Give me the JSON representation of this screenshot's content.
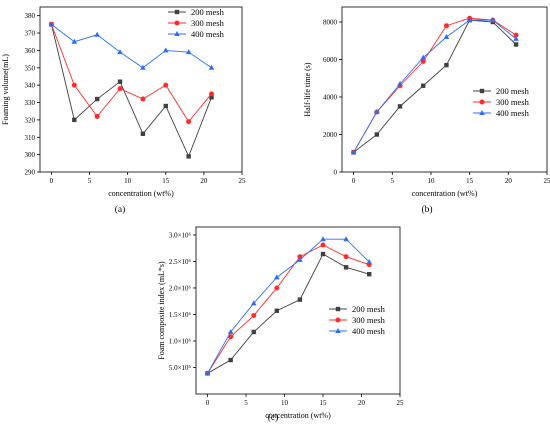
{
  "series_styles": [
    {
      "name": "200 mesh",
      "color": "#404040",
      "marker": "square"
    },
    {
      "name": "300 mesh",
      "color": "#ff2a2a",
      "marker": "circle"
    },
    {
      "name": "400 mesh",
      "color": "#2e6ff2",
      "marker": "triangle"
    }
  ],
  "chart_data": [
    {
      "panel": "(a)",
      "type": "line",
      "xlabel": "concentration (wt%)",
      "ylabel": "Foaming volume(mL)",
      "xlim": [
        -1.5,
        25
      ],
      "ylim": [
        290,
        385
      ],
      "xticks": [
        0,
        5,
        10,
        15,
        20,
        25
      ],
      "yticks": [
        290,
        300,
        310,
        320,
        330,
        340,
        350,
        360,
        370,
        380
      ],
      "ytick_labels": [
        "290",
        "300",
        "310",
        "320",
        "330",
        "340",
        "350",
        "360",
        "370",
        "380"
      ],
      "legend": "top-right",
      "x": [
        0,
        3,
        6,
        9,
        12,
        15,
        18,
        21
      ],
      "series": [
        {
          "name": "200 mesh",
          "values": [
            375,
            320,
            332,
            342,
            312,
            328,
            299,
            333
          ]
        },
        {
          "name": "300 mesh",
          "values": [
            375,
            340,
            322,
            338,
            332,
            340,
            319,
            335
          ]
        },
        {
          "name": "400 mesh",
          "values": [
            375,
            365,
            369,
            359,
            350,
            360,
            359,
            350
          ]
        }
      ]
    },
    {
      "panel": "(b)",
      "type": "line",
      "xlabel": "concentration (wt%)",
      "ylabel": "Half-life time (s)",
      "xlim": [
        -1.5,
        25
      ],
      "ylim": [
        0,
        8800
      ],
      "xticks": [
        0,
        5,
        10,
        15,
        20,
        25
      ],
      "yticks": [
        0,
        2000,
        4000,
        6000,
        8000
      ],
      "ytick_labels": [
        "0",
        "2000",
        "4000",
        "6000",
        "8000"
      ],
      "legend": "bottom-right",
      "x": [
        0,
        3,
        6,
        9,
        12,
        15,
        18,
        21
      ],
      "series": [
        {
          "name": "200 mesh",
          "values": [
            1050,
            2000,
            3500,
            4600,
            5700,
            8100,
            8000,
            6800
          ]
        },
        {
          "name": "300 mesh",
          "values": [
            1050,
            3200,
            4600,
            5900,
            7800,
            8200,
            8100,
            7300
          ]
        },
        {
          "name": "400 mesh",
          "values": [
            1050,
            3200,
            4700,
            6100,
            7200,
            8100,
            8100,
            7100
          ]
        }
      ]
    },
    {
      "panel": "(c)",
      "type": "line",
      "xlabel": "concentration (wt%)",
      "ylabel": "Foam composite index (mL*s)",
      "xlim": [
        -1.5,
        25
      ],
      "ylim": [
        0,
        3150000
      ],
      "xticks": [
        0,
        5,
        10,
        15,
        20,
        25
      ],
      "yticks": [
        500000,
        1000000,
        1500000,
        2000000,
        2500000,
        3000000
      ],
      "ytick_labels": [
        "5.0×10⁵",
        "1.0×10⁶",
        "1.5×10⁶",
        "2.0×10⁶",
        "2.5×10⁶",
        "3.0×10⁶"
      ],
      "legend": "bottom-right",
      "x": [
        0,
        3,
        6,
        9,
        12,
        15,
        18,
        21
      ],
      "series": [
        {
          "name": "200 mesh",
          "values": [
            390000,
            640000,
            1170000,
            1570000,
            1780000,
            2640000,
            2390000,
            2260000
          ]
        },
        {
          "name": "300 mesh",
          "values": [
            390000,
            1080000,
            1480000,
            2000000,
            2590000,
            2810000,
            2590000,
            2440000
          ]
        },
        {
          "name": "400 mesh",
          "values": [
            390000,
            1170000,
            1710000,
            2200000,
            2530000,
            2920000,
            2920000,
            2490000
          ]
        }
      ]
    }
  ]
}
